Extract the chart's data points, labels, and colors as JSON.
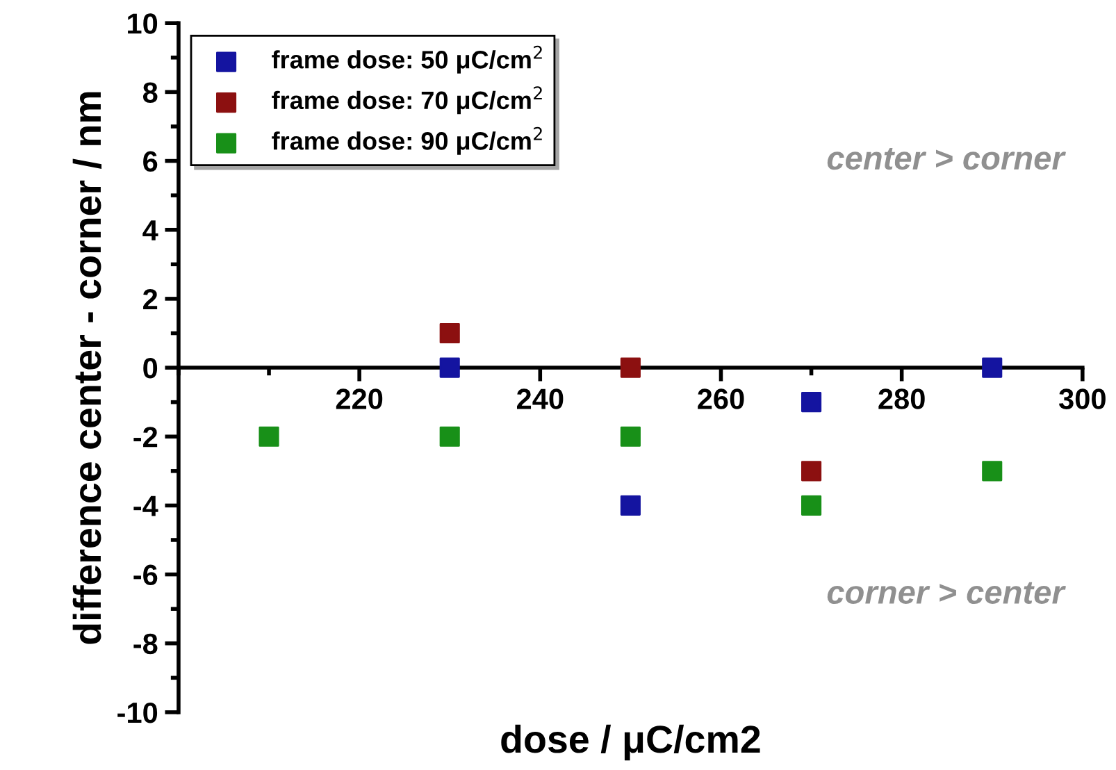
{
  "chart_data": {
    "type": "scatter",
    "xlabel": "dose / μC/cm2",
    "ylabel": "difference center - corner / nm",
    "xlim": [
      200,
      300
    ],
    "xticks": [
      220,
      240,
      260,
      280,
      300
    ],
    "ylim": [
      -10,
      10
    ],
    "yticks": [
      -10,
      -8,
      -6,
      -4,
      -2,
      0,
      2,
      4,
      6,
      8,
      10
    ],
    "marker": "square",
    "grid": false,
    "legend": "top left",
    "annotations": [
      "center > corner",
      "corner > center"
    ],
    "series": [
      {
        "name": "frame dose: 50 μC/cm$^{2}$",
        "color": "#1414a0",
        "x": [
          230,
          250,
          270,
          290
        ],
        "values": [
          0,
          -4,
          -1,
          0
        ]
      },
      {
        "name": "frame dose: 70 μC/cm$^{2}$",
        "color": "#8c1010",
        "x": [
          230,
          250,
          270
        ],
        "values": [
          1,
          0,
          -3
        ]
      },
      {
        "name": "frame dose: 90 μC/cm$^{2}$",
        "color": "#189018",
        "x": [
          210,
          230,
          250,
          270,
          290
        ],
        "values": [
          -2,
          -2,
          -2,
          -4,
          -3
        ]
      }
    ]
  }
}
